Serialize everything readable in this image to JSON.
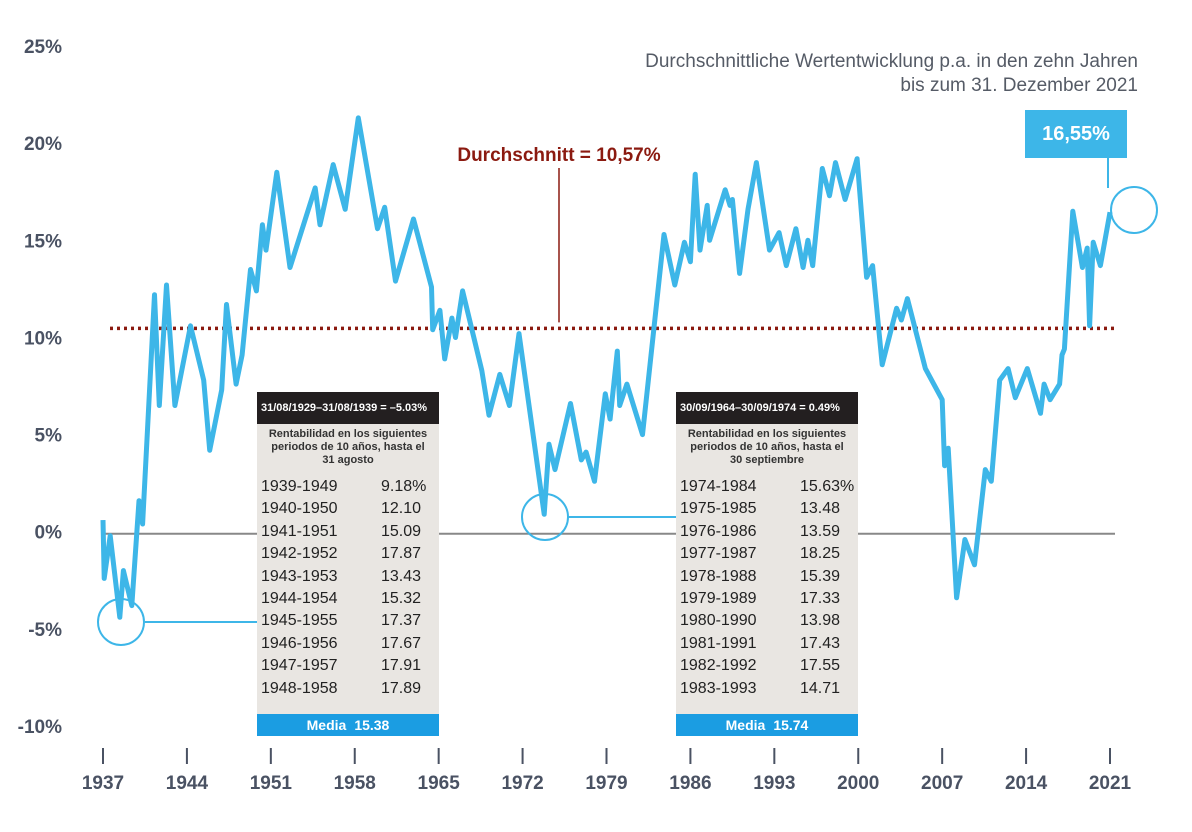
{
  "chart_data": {
    "type": "line",
    "title": "Durchschnittliche Wertentwicklung p.a. in den zehn Jahren bis zum 31. Dezember 2021",
    "x": [
      1937.0,
      1937.1,
      1937.6,
      1938.4,
      1938.7,
      1939.4,
      1940.0,
      1940.3,
      1941.3,
      1941.7,
      1942.3,
      1943.0,
      1944.3,
      1945.4,
      1945.9,
      1946.9,
      1947.3,
      1948.1,
      1948.6,
      1949.3,
      1949.8,
      1950.3,
      1950.6,
      1951.5,
      1952.6,
      1954.7,
      1955.1,
      1956.2,
      1957.2,
      1958.3,
      1959.9,
      1960.5,
      1961.4,
      1962.9,
      1964.4,
      1964.5,
      1965.1,
      1965.5,
      1966.1,
      1966.4,
      1967.0,
      1968.6,
      1969.2,
      1970.1,
      1970.9,
      1971.7,
      1973.8,
      1974.2,
      1974.7,
      1976.0,
      1976.9,
      1977.3,
      1978.0,
      1978.9,
      1979.3,
      1979.9,
      1980.1,
      1980.7,
      1982.0,
      1983.8,
      1984.7,
      1985.5,
      1986.0,
      1986.4,
      1986.8,
      1987.4,
      1987.6,
      1988.9,
      1989.3,
      1989.5,
      1990.1,
      1990.8,
      1991.5,
      1992.6,
      1993.4,
      1994.0,
      1994.8,
      1995.4,
      1995.8,
      1996.2,
      1997.0,
      1997.6,
      1998.1,
      1998.9,
      1999.9,
      2000.7,
      2001.2,
      2002.0,
      2003.2,
      2003.6,
      2004.1,
      2005.6,
      2007.0,
      2007.2,
      2007.5,
      2008.2,
      2008.9,
      2009.7,
      2010.6,
      2011.1,
      2011.8,
      2012.5,
      2013.1,
      2014.1,
      2015.2,
      2015.5,
      2016.0,
      2016.8,
      2017.0,
      2017.2,
      2017.9,
      2018.7,
      2019.1,
      2019.3,
      2019.6,
      2020.2,
      2021.0
    ],
    "values": [
      0.7,
      -2.3,
      -0.1,
      -4.3,
      -1.9,
      -3.7,
      1.7,
      0.5,
      12.3,
      6.6,
      12.8,
      6.6,
      10.7,
      7.9,
      4.3,
      7.4,
      11.8,
      7.7,
      9.2,
      13.6,
      12.5,
      15.9,
      14.6,
      18.6,
      13.7,
      17.8,
      15.9,
      19.0,
      16.7,
      21.4,
      15.7,
      16.8,
      13.0,
      16.2,
      12.7,
      10.5,
      11.5,
      9.0,
      11.1,
      10.1,
      12.5,
      8.4,
      6.1,
      8.2,
      6.6,
      10.3,
      1.0,
      4.6,
      3.3,
      6.7,
      3.8,
      4.2,
      2.7,
      7.2,
      5.9,
      9.4,
      6.6,
      7.7,
      5.1,
      15.4,
      12.8,
      15.0,
      14.0,
      18.5,
      14.6,
      16.9,
      15.1,
      17.7,
      16.9,
      17.2,
      13.4,
      16.7,
      19.1,
      14.6,
      15.5,
      13.8,
      15.7,
      13.7,
      15.1,
      13.8,
      18.8,
      17.4,
      19.1,
      17.2,
      19.3,
      13.2,
      13.8,
      8.7,
      11.6,
      11.0,
      12.1,
      8.5,
      6.9,
      3.5,
      4.4,
      -3.3,
      -0.3,
      -1.6,
      3.3,
      2.7,
      7.9,
      8.5,
      7.0,
      8.5,
      6.2,
      7.7,
      6.9,
      7.7,
      9.2,
      9.5,
      16.6,
      13.7,
      14.7,
      10.7,
      15.0,
      13.8,
      16.55
    ],
    "color": "#3db6e8",
    "xlim": [
      1937,
      2021
    ],
    "xticks": [
      1937,
      1944,
      1951,
      1958,
      1965,
      1972,
      1979,
      1986,
      1993,
      2000,
      2007,
      2014,
      2021
    ],
    "ylim": [
      -10,
      25
    ],
    "yticks": [
      {
        "value": 25,
        "label": "25%"
      },
      {
        "value": 20,
        "label": "20%"
      },
      {
        "value": 15,
        "label": "15%"
      },
      {
        "value": 10,
        "label": "10%"
      },
      {
        "value": 5,
        "label": "5%"
      },
      {
        "value": 0,
        "label": "0%"
      },
      {
        "value": -5,
        "label": "-5%"
      },
      {
        "value": -10,
        "label": "-10%"
      }
    ],
    "average": 10.57,
    "average_label": "Durchschnitt = 10,57%",
    "average_color": "#8b1a10",
    "end_label": "16,55%",
    "tables": [
      {
        "header": "31/08/1929–31/08/1939 = –5.03%",
        "subtitle": "Rentabilidad en los siguientes periodos de 10 años, hasta el 31 agosto",
        "rows": [
          [
            "1939-1949",
            "9.18%"
          ],
          [
            "1940-1950",
            "12.10"
          ],
          [
            "1941-1951",
            "15.09"
          ],
          [
            "1942-1952",
            "17.87"
          ],
          [
            "1943-1953",
            "13.43"
          ],
          [
            "1944-1954",
            "15.32"
          ],
          [
            "1945-1955",
            "17.37"
          ],
          [
            "1946-1956",
            "17.67"
          ],
          [
            "1947-1957",
            "17.91"
          ],
          [
            "1948-1958",
            "17.89"
          ]
        ],
        "footer_label": "Media",
        "footer_value": "15.38"
      },
      {
        "header": "30/09/1964–30/09/1974 = 0.49%",
        "subtitle": "Rentabilidad en los siguientes periodos de 10 años, hasta el 30 septiembre",
        "rows": [
          [
            "1974-1984",
            "15.63%"
          ],
          [
            "1975-1985",
            "13.48"
          ],
          [
            "1976-1986",
            "13.59"
          ],
          [
            "1977-1987",
            "18.25"
          ],
          [
            "1978-1988",
            "15.39"
          ],
          [
            "1979-1989",
            "17.33"
          ],
          [
            "1980-1990",
            "13.98"
          ],
          [
            "1981-1991",
            "17.43"
          ],
          [
            "1982-1992",
            "17.55"
          ],
          [
            "1983-1993",
            "14.71"
          ]
        ],
        "footer_label": "Media",
        "footer_value": "15.74"
      }
    ]
  }
}
